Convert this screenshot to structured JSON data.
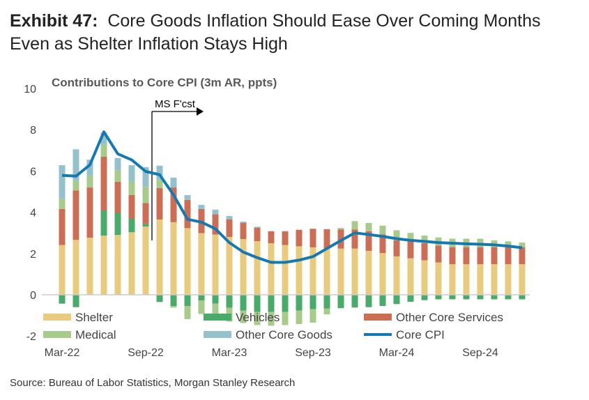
{
  "title": {
    "exhibit": "Exhibit 47:",
    "line1": "Core Goods Inflation Should Ease Over Coming Months",
    "line2": "Even as Shelter Inflation Stays High"
  },
  "source": "Source: Bureau of Labor Statistics, Morgan Stanley Research",
  "chart_data": {
    "type": "bar",
    "stacked": true,
    "subtitle": "Contributions to Core CPI (3m AR, ppts)",
    "annotation": "MS F'cst",
    "annotation_start": "Oct-22",
    "categories": [
      "Mar-22",
      "Apr-22",
      "May-22",
      "Jun-22",
      "Jul-22",
      "Aug-22",
      "Sep-22",
      "Oct-22",
      "Nov-22",
      "Dec-22",
      "Jan-23",
      "Feb-23",
      "Mar-23",
      "Apr-23",
      "May-23",
      "Jun-23",
      "Jul-23",
      "Aug-23",
      "Sep-23",
      "Oct-23",
      "Nov-23",
      "Dec-23",
      "Jan-24",
      "Feb-24",
      "Mar-24",
      "Apr-24",
      "May-24",
      "Jun-24",
      "Jul-24",
      "Aug-24",
      "Sep-24",
      "Oct-24",
      "Nov-24",
      "Dec-24"
    ],
    "xticks": [
      "Mar-22",
      "Sep-22",
      "Mar-23",
      "Sep-23",
      "Mar-24",
      "Sep-24"
    ],
    "yticks": [
      -2,
      0,
      2,
      4,
      6,
      8,
      10
    ],
    "ylim": [
      -2,
      10
    ],
    "grid": false,
    "legend_placement": "bottom",
    "series": [
      {
        "name": "Shelter",
        "kind": "bar",
        "color": "#E9CB7F",
        "values": [
          2.41,
          2.66,
          2.77,
          2.87,
          2.9,
          3.03,
          3.31,
          3.65,
          3.52,
          3.23,
          2.99,
          2.92,
          2.8,
          2.7,
          2.6,
          2.5,
          2.41,
          2.35,
          2.3,
          2.25,
          2.24,
          2.24,
          2.13,
          2.02,
          1.86,
          1.77,
          1.67,
          1.57,
          1.48,
          1.48,
          1.48,
          1.48,
          1.48,
          1.48
        ]
      },
      {
        "name": "Vehicles",
        "kind": "bar",
        "color": "#4AAA6A",
        "values": [
          -0.43,
          -0.6,
          0,
          1.22,
          1.07,
          0.67,
          0.13,
          -0.35,
          -0.55,
          -0.55,
          -0.28,
          -0.43,
          -0.63,
          -0.77,
          -0.83,
          -0.83,
          -0.83,
          -0.77,
          -0.7,
          -0.67,
          -0.65,
          -0.62,
          -0.6,
          -0.54,
          -0.45,
          -0.34,
          -0.26,
          -0.22,
          -0.22,
          -0.22,
          -0.22,
          -0.22,
          -0.22,
          -0.22
        ]
      },
      {
        "name": "Other Core Services",
        "kind": "bar",
        "color": "#CB6E55",
        "values": [
          1.75,
          2.4,
          2.43,
          2.6,
          1.51,
          1.14,
          1.01,
          1.52,
          1.68,
          1.37,
          1.17,
          0.98,
          0.86,
          0.78,
          0.65,
          0.58,
          0.67,
          0.8,
          0.9,
          0.93,
          0.93,
          0.93,
          0.95,
          0.91,
          0.78,
          0.82,
          0.83,
          0.81,
          0.83,
          0.83,
          0.83,
          0.83,
          0.83,
          0.83
        ]
      },
      {
        "name": "Medical",
        "kind": "bar",
        "color": "#A8CB8C",
        "values": [
          0.48,
          0.46,
          0.57,
          0.61,
          0.56,
          0.64,
          0.78,
          0.42,
          -0.07,
          -0.63,
          -0.65,
          -0.64,
          -0.67,
          -0.6,
          -0.64,
          -0.67,
          -0.64,
          -0.65,
          -0.65,
          -0.28,
          0.07,
          0.4,
          0.4,
          0.42,
          0.49,
          0.41,
          0.37,
          0.4,
          0.41,
          0.41,
          0.41,
          0.33,
          0.28,
          0.22
        ]
      },
      {
        "name": "Other Core Goods",
        "kind": "bar",
        "color": "#94C1CC",
        "values": [
          1.64,
          1.53,
          0.78,
          0.55,
          0.59,
          0.8,
          0.96,
          0.67,
          0.48,
          0.23,
          0.2,
          0.23,
          0.16,
          0.07,
          0.05,
          0,
          0,
          0,
          0,
          0,
          0,
          0,
          0,
          0,
          0,
          0,
          0,
          0,
          0,
          0,
          0,
          0,
          0,
          0
        ]
      },
      {
        "name": "Core CPI",
        "kind": "line",
        "color": "#1479B0",
        "values": [
          5.79,
          5.75,
          6.3,
          7.9,
          6.83,
          6.54,
          5.98,
          5.82,
          4.84,
          3.66,
          3.52,
          3.2,
          2.53,
          2.07,
          1.8,
          1.57,
          1.57,
          1.68,
          1.85,
          2.24,
          2.63,
          3.0,
          2.92,
          2.83,
          2.72,
          2.64,
          2.59,
          2.53,
          2.5,
          2.47,
          2.45,
          2.42,
          2.36,
          2.28
        ]
      }
    ]
  }
}
